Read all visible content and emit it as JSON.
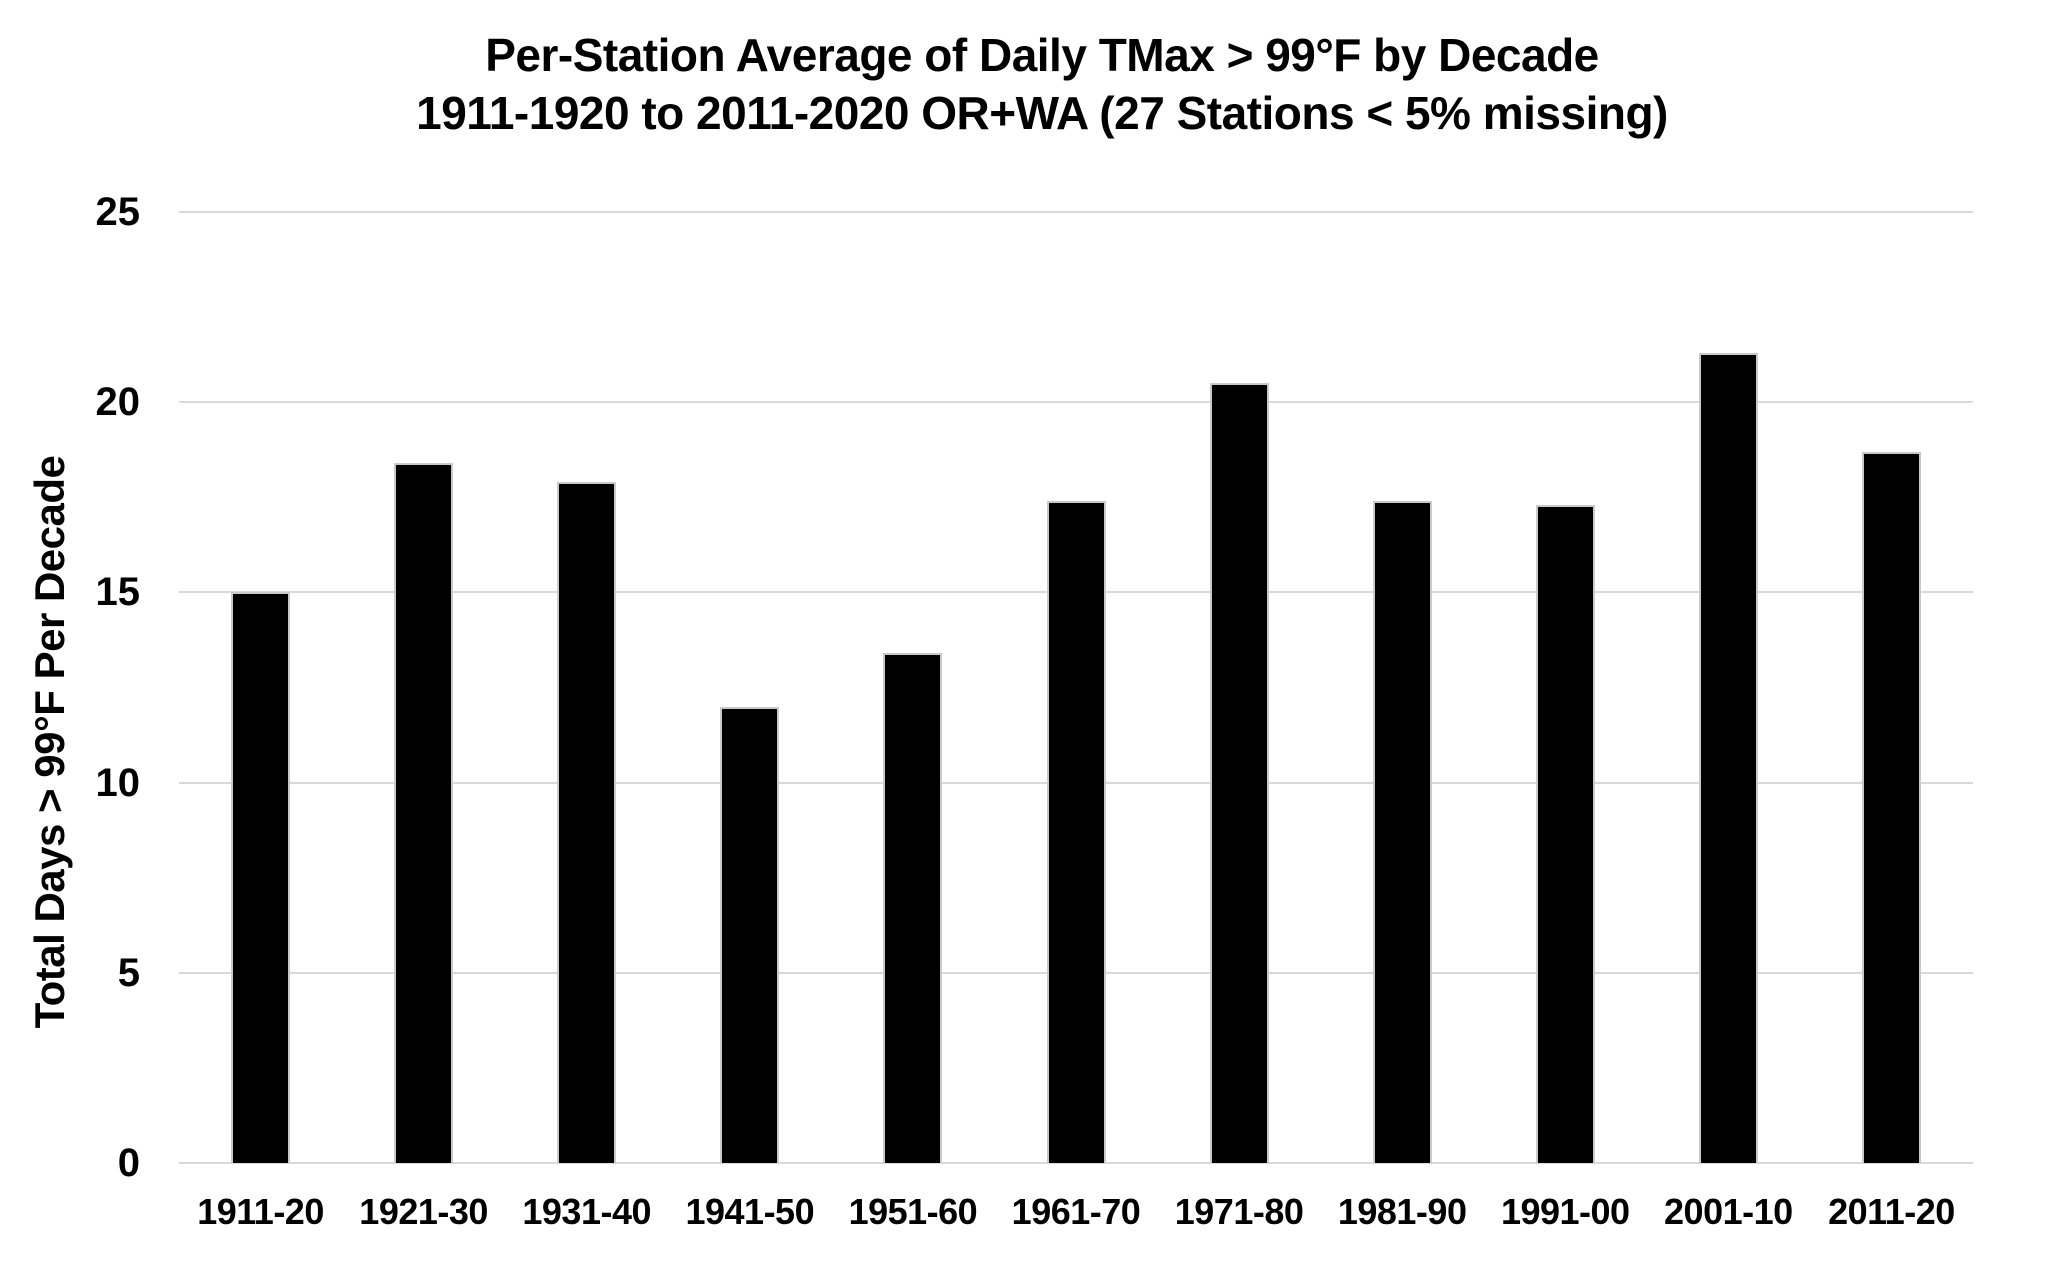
{
  "chart_data": {
    "type": "bar",
    "title_line1": "Per-Station Average of Daily TMax > 99°F by Decade",
    "title_line2": "1911-1920 to 2011-2020 OR+WA (27 Stations < 5% missing)",
    "ylabel": "Total Days > 99°F Per Decade",
    "xlabel": "",
    "categories": [
      "1911-20",
      "1921-30",
      "1931-40",
      "1941-50",
      "1951-60",
      "1961-70",
      "1971-80",
      "1981-90",
      "1991-00",
      "2001-10",
      "2011-20"
    ],
    "values": [
      15.0,
      18.4,
      17.9,
      12.0,
      13.4,
      17.4,
      20.5,
      17.4,
      17.3,
      21.3,
      18.7
    ],
    "ylim": [
      0,
      25
    ],
    "yticks": [
      0,
      5,
      10,
      15,
      20,
      25
    ],
    "grid": true,
    "legend": "none",
    "bar_color": "#000000",
    "bar_edge_color": "#c9c9c9",
    "gridline_color": "#d9d9d9",
    "background_color": "#ffffff",
    "text_color": "#000000"
  }
}
